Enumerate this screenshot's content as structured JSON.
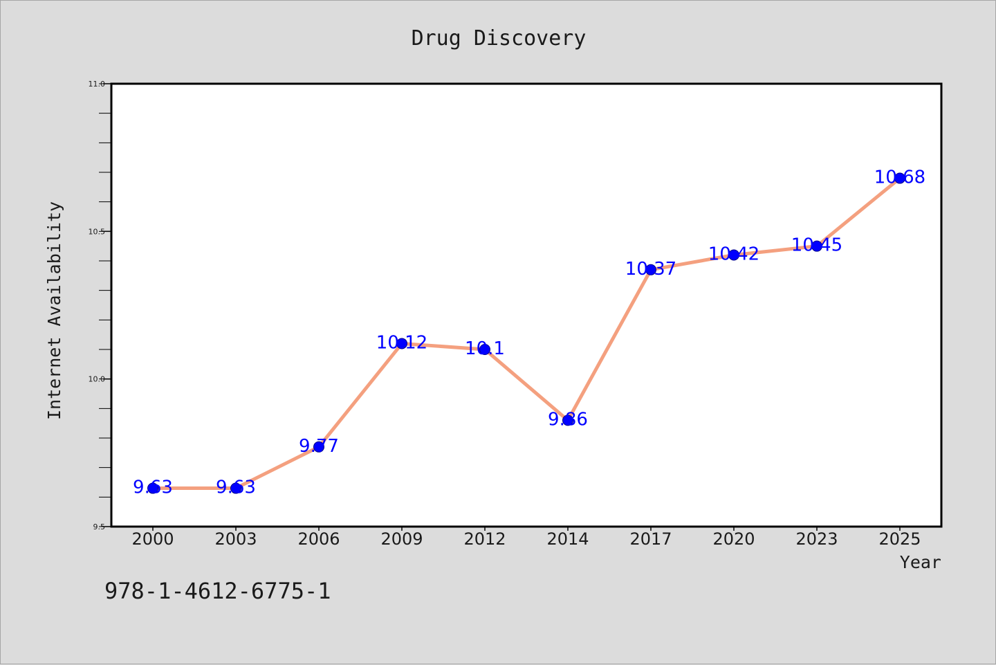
{
  "chart_data": {
    "type": "line",
    "title": "Drug Discovery",
    "xlabel": "Year",
    "ylabel": "Internet Availability",
    "categories": [
      "2000",
      "2003",
      "2006",
      "2009",
      "2012",
      "2014",
      "2017",
      "2020",
      "2023",
      "2025"
    ],
    "series": [
      {
        "values": [
          9.63,
          9.63,
          9.77,
          10.12,
          10.1,
          9.86,
          10.37,
          10.42,
          10.45,
          10.68
        ]
      }
    ],
    "data_labels": [
      "9.63",
      "9.63",
      "9.77",
      "10.12",
      "10.1",
      "9.86",
      "10.37",
      "10.42",
      "10.45",
      "10.68"
    ],
    "ylim": [
      9.5,
      11.0
    ],
    "yticks": [
      "9.5",
      "10.0",
      "10.5",
      "11.0"
    ],
    "grid": false,
    "line_color": "#f4a07f",
    "marker_color": "#0000ff",
    "label_color": "#0000ff"
  },
  "footer": {
    "isbn": "978-1-4612-6775-1"
  }
}
